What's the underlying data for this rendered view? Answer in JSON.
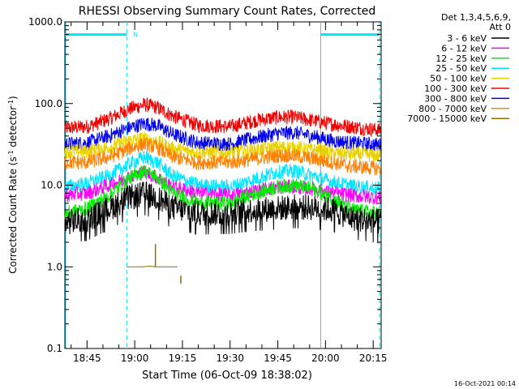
{
  "chart_data": {
    "type": "line",
    "title": "RHESSI Observing Summary Count Rates, Corrected",
    "xlabel": "Start Time (06-Oct-09 18:38:02)",
    "ylabel": "Corrected Count Rate (s⁻¹ detector⁻¹)",
    "ylabel_parts": [
      "Corrected Count Rate (s",
      "-1",
      " detector",
      "-1",
      ")"
    ],
    "y_scale": "log",
    "ylim": [
      0.1,
      1000
    ],
    "y_ticks": [
      {
        "value": 1000,
        "label": "1000.0"
      },
      {
        "value": 100,
        "label": "100.0"
      },
      {
        "value": 10,
        "label": "10.0"
      },
      {
        "value": 1,
        "label": "1.0"
      },
      {
        "value": 0.1,
        "label": "0.1"
      }
    ],
    "xlim_minutes": [
      38.03,
      137.5
    ],
    "x_ticks": [
      {
        "minutes": 45,
        "label": "18:45"
      },
      {
        "minutes": 60,
        "label": "19:00"
      },
      {
        "minutes": 75,
        "label": "19:15"
      },
      {
        "minutes": 90,
        "label": "19:30"
      },
      {
        "minutes": 105,
        "label": "19:45"
      },
      {
        "minutes": 120,
        "label": "20:00"
      },
      {
        "minutes": 135,
        "label": "20:15"
      }
    ],
    "legend": {
      "placement": "right",
      "header": [
        "Det 1,3,4,5,6,9,",
        "Att 0"
      ],
      "entries": [
        {
          "label": "3 - 6 keV",
          "color": "#000000"
        },
        {
          "label": "6 - 12 keV",
          "color": "#ff00ff"
        },
        {
          "label": "12 - 25 keV",
          "color": "#00ee00"
        },
        {
          "label": "25 - 50 keV",
          "color": "#00e5ff"
        },
        {
          "label": "50 - 100 keV",
          "color": "#e8d000"
        },
        {
          "label": "100 - 300 keV",
          "color": "#ee0000"
        },
        {
          "label": "300 - 800 keV",
          "color": "#0000ee"
        },
        {
          "label": "800 - 7000 keV",
          "color": "#ff8000"
        },
        {
          "label": "7000 - 15000 keV",
          "color": "#8b7000"
        }
      ]
    },
    "series": [
      {
        "color": "#ee0000",
        "x": [
          38,
          45,
          52,
          58,
          63,
          67,
          72,
          80,
          90,
          98,
          105,
          110,
          116,
          122,
          128,
          137.5
        ],
        "y": [
          50,
          52,
          65,
          85,
          97,
          90,
          70,
          54,
          52,
          62,
          68,
          68,
          62,
          56,
          52,
          47
        ]
      },
      {
        "color": "#0000ee",
        "x": [
          38,
          45,
          52,
          58,
          63,
          67,
          72,
          80,
          90,
          98,
          105,
          110,
          116,
          122,
          128,
          137.5
        ],
        "y": [
          32,
          33,
          40,
          50,
          57,
          54,
          42,
          33,
          32,
          38,
          43,
          44,
          40,
          35,
          33,
          31
        ]
      },
      {
        "color": "#e8d000",
        "x": [
          38,
          45,
          52,
          58,
          63,
          67,
          72,
          80,
          90,
          98,
          105,
          110,
          116,
          122,
          128,
          137.5
        ],
        "y": [
          26,
          26,
          29,
          35,
          37,
          34,
          28,
          25,
          25,
          27,
          29,
          29,
          27,
          25,
          24,
          23
        ]
      },
      {
        "color": "#ff8000",
        "x": [
          38,
          45,
          52,
          58,
          63,
          67,
          72,
          80,
          90,
          98,
          105,
          110,
          116,
          122,
          128,
          137.5
        ],
        "y": [
          19,
          19,
          22,
          28,
          32,
          29,
          22,
          19,
          19,
          21,
          23,
          23,
          21,
          19,
          17,
          16
        ]
      },
      {
        "color": "#00e5ff",
        "x": [
          38,
          45,
          52,
          58,
          63,
          67,
          72,
          80,
          90,
          98,
          105,
          110,
          116,
          122,
          128,
          137.5
        ],
        "y": [
          9.5,
          10.5,
          13,
          18,
          22,
          19,
          13,
          10,
          9.5,
          12,
          14.5,
          15,
          13,
          11,
          9.8,
          9
        ]
      },
      {
        "color": "#ff00ff",
        "x": [
          38,
          45,
          52,
          58,
          63,
          67,
          72,
          80,
          90,
          98,
          105,
          110,
          116,
          122,
          128,
          137.5
        ],
        "y": [
          7.5,
          8,
          10,
          12.5,
          14.5,
          12.5,
          9.5,
          8,
          7.5,
          8.5,
          9.5,
          9.5,
          9,
          8,
          7.5,
          7
        ]
      },
      {
        "color": "#00ee00",
        "x": [
          38,
          45,
          52,
          58,
          63,
          67,
          72,
          80,
          90,
          98,
          105,
          110,
          116,
          122,
          128,
          137.5
        ],
        "y": [
          4.5,
          5.2,
          7.5,
          12,
          15,
          12.5,
          8,
          6,
          6,
          8,
          9.5,
          10,
          9,
          7,
          5,
          4.5
        ]
      },
      {
        "color": "#000000",
        "x": [
          38,
          45,
          52,
          58,
          63,
          67,
          72,
          80,
          90,
          98,
          105,
          110,
          116,
          122,
          128,
          137.5
        ],
        "y": [
          3.5,
          3.8,
          5.2,
          7,
          7.8,
          7,
          5.3,
          4.5,
          4.6,
          5,
          5.2,
          5.4,
          5.3,
          5,
          4,
          3.5
        ]
      },
      {
        "color": "#8b7000",
        "x": [
          57.5,
          58,
          62,
          65,
          66.5,
          70,
          73,
          73.5
        ],
        "y": [
          1.0,
          1.0,
          1.0,
          1.02,
          1.0,
          1.0,
          1.0,
          1.0
        ]
      }
    ],
    "spike_7000_15000": [
      {
        "x": 66.5,
        "y0": 1.0,
        "y1": 1.9
      },
      {
        "x": 74.5,
        "y0": 0.62,
        "y1": 0.78
      }
    ],
    "attenuator_bars": [
      {
        "x0": 38.03,
        "x1": 57.5,
        "y": 700
      },
      {
        "x0": 118.5,
        "x1": 137,
        "y": 700
      }
    ],
    "attenuator_label": "N",
    "attenuator_label_x": 59.5,
    "night_boundaries_minutes": [
      57.5,
      118.5,
      137
    ],
    "night_boundary_styles": [
      "dashed",
      "solid",
      "dashed"
    ],
    "footer_date": "16-Oct-2021 00:14"
  }
}
